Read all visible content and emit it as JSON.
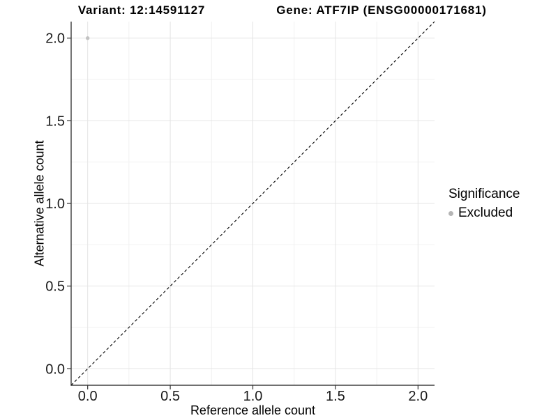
{
  "header": {
    "variant_title": "Variant: 12:14591127",
    "gene_title": "Gene: ATF7IP (ENSG00000171681)"
  },
  "chart_data": {
    "type": "scatter",
    "title_left": "Variant: 12:14591127",
    "title_right": "Gene: ATF7IP (ENSG00000171681)",
    "xlabel": "Reference allele count",
    "ylabel": "Alternative allele count",
    "xlim": [
      -0.1,
      2.1
    ],
    "ylim": [
      -0.1,
      2.1
    ],
    "x_ticks": [
      0.0,
      0.5,
      1.0,
      1.5,
      2.0
    ],
    "x_tick_labels": [
      "0.0",
      "0.5",
      "1.0",
      "1.5",
      "2.0"
    ],
    "y_ticks": [
      0.0,
      0.5,
      1.0,
      1.5,
      2.0
    ],
    "y_tick_labels": [
      "0.0",
      "0.5",
      "1.0",
      "1.5",
      "2.0"
    ],
    "x_minor_ticks": [
      0.25,
      0.75,
      1.25,
      1.75
    ],
    "y_minor_ticks": [
      0.25,
      0.75,
      1.25,
      1.75
    ],
    "grid": true,
    "identity_line": {
      "style": "dashed",
      "from": [
        -0.1,
        -0.1
      ],
      "to": [
        2.1,
        2.1
      ],
      "color": "#000000"
    },
    "series": [
      {
        "name": "Excluded",
        "color": "#c2c2c2",
        "point_radius": 2.7,
        "points": [
          {
            "x": 0.0,
            "y": 2.0
          }
        ]
      }
    ],
    "legend": {
      "title": "Significance",
      "position": "right",
      "items": [
        {
          "label": "Excluded",
          "color": "#b5b5b5"
        }
      ]
    }
  },
  "colors": {
    "background": "#ffffff",
    "grid_major": "#e4e4e4",
    "grid_minor": "#f1f1f1",
    "axis_line": "#1a1a1a",
    "tick_mark": "#333333",
    "tick_text": "#1a1a1a"
  }
}
